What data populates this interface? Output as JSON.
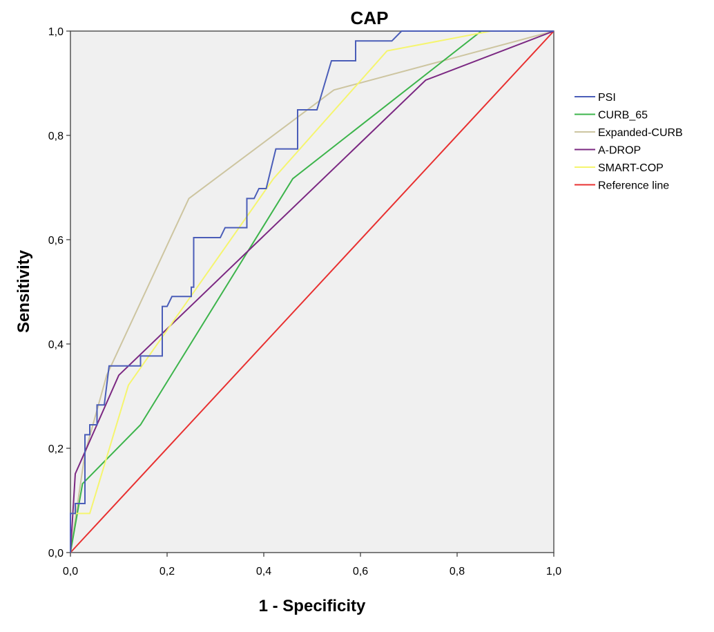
{
  "chart_data": {
    "type": "line",
    "title": "CAP",
    "xlabel": "1 - Specificity",
    "ylabel": "Sensitivity",
    "xlim": [
      0,
      1
    ],
    "ylim": [
      0,
      1
    ],
    "x_ticks": [
      "0,0",
      "0,2",
      "0,4",
      "0,6",
      "0,8",
      "1,0"
    ],
    "y_ticks": [
      "0,0",
      "0,2",
      "0,4",
      "0,6",
      "0,8",
      "1,0"
    ],
    "x_tick_values": [
      0,
      0.2,
      0.4,
      0.6,
      0.8,
      1.0
    ],
    "y_tick_values": [
      0,
      0.2,
      0.4,
      0.6,
      0.8,
      1.0
    ],
    "grid": false,
    "legend_position": "right",
    "plot_background": "#f0f0f0",
    "series": [
      {
        "name": "PSI",
        "color": "#4a5db8",
        "points": [
          [
            0,
            0
          ],
          [
            0,
            0.075
          ],
          [
            0.01,
            0.075
          ],
          [
            0.01,
            0.094
          ],
          [
            0.03,
            0.094
          ],
          [
            0.03,
            0.226
          ],
          [
            0.04,
            0.226
          ],
          [
            0.04,
            0.245
          ],
          [
            0.055,
            0.245
          ],
          [
            0.055,
            0.283
          ],
          [
            0.07,
            0.283
          ],
          [
            0.08,
            0.358
          ],
          [
            0.145,
            0.358
          ],
          [
            0.145,
            0.377
          ],
          [
            0.19,
            0.377
          ],
          [
            0.19,
            0.472
          ],
          [
            0.2,
            0.472
          ],
          [
            0.21,
            0.491
          ],
          [
            0.25,
            0.491
          ],
          [
            0.25,
            0.509
          ],
          [
            0.255,
            0.509
          ],
          [
            0.255,
            0.604
          ],
          [
            0.31,
            0.604
          ],
          [
            0.32,
            0.623
          ],
          [
            0.365,
            0.623
          ],
          [
            0.365,
            0.679
          ],
          [
            0.38,
            0.679
          ],
          [
            0.39,
            0.698
          ],
          [
            0.405,
            0.698
          ],
          [
            0.425,
            0.774
          ],
          [
            0.47,
            0.774
          ],
          [
            0.47,
            0.849
          ],
          [
            0.51,
            0.849
          ],
          [
            0.54,
            0.943
          ],
          [
            0.59,
            0.943
          ],
          [
            0.59,
            0.981
          ],
          [
            0.665,
            0.981
          ],
          [
            0.685,
            1.0
          ],
          [
            1.0,
            1.0
          ]
        ]
      },
      {
        "name": "CURB_65",
        "color": "#3cb44b",
        "points": [
          [
            0,
            0
          ],
          [
            0.025,
            0.132
          ],
          [
            0.145,
            0.245
          ],
          [
            0.46,
            0.717
          ],
          [
            0.85,
            1.0
          ],
          [
            1.0,
            1.0
          ]
        ]
      },
      {
        "name": "Expanded-CURB",
        "color": "#cdc5a0",
        "points": [
          [
            0,
            0
          ],
          [
            0.03,
            0.19
          ],
          [
            0.075,
            0.34
          ],
          [
            0.245,
            0.679
          ],
          [
            0.545,
            0.887
          ],
          [
            1.0,
            1.0
          ]
        ]
      },
      {
        "name": "A-DROP",
        "color": "#7b2882",
        "points": [
          [
            0,
            0
          ],
          [
            0.01,
            0.151
          ],
          [
            0.1,
            0.34
          ],
          [
            0.735,
            0.906
          ],
          [
            1.0,
            1.0
          ]
        ]
      },
      {
        "name": "SMART-COP",
        "color": "#f5f56e",
        "points": [
          [
            0,
            0.075
          ],
          [
            0.04,
            0.075
          ],
          [
            0.12,
            0.321
          ],
          [
            0.42,
            0.717
          ],
          [
            0.655,
            0.962
          ],
          [
            0.87,
            1.0
          ],
          [
            1.0,
            1.0
          ]
        ]
      },
      {
        "name": "Reference line",
        "color": "#e83030",
        "points": [
          [
            0,
            0
          ],
          [
            1,
            1
          ]
        ]
      }
    ]
  }
}
